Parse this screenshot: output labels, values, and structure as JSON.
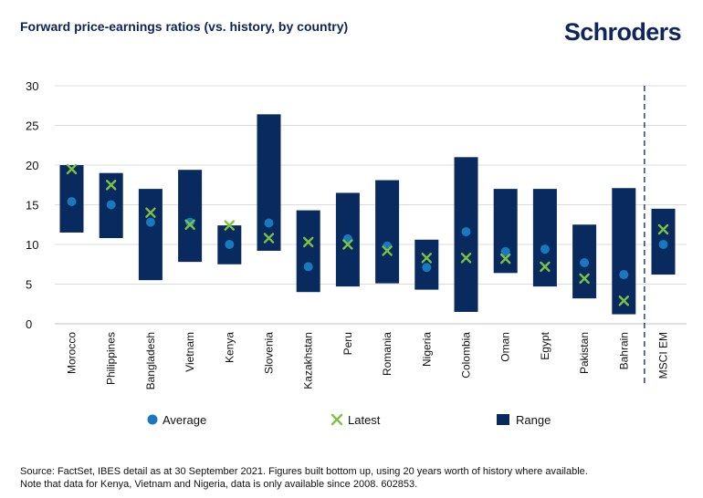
{
  "header": {
    "title": "Forward price-earnings ratios (vs. history, by country)",
    "logo_text": "Schroders"
  },
  "chart_data": {
    "type": "range-bar",
    "title": "Forward price-earnings ratios (vs. history, by country)",
    "ylim": [
      0,
      30
    ],
    "yticks": [
      0,
      5,
      10,
      15,
      20,
      25,
      30
    ],
    "grid": true,
    "legend_position": "bottom",
    "categories": [
      "Morocco",
      "Philippines",
      "Bangladesh",
      "Vietnam",
      "Kenya",
      "Slovenia",
      "Kazakhstan",
      "Peru",
      "Romania",
      "Nigeria",
      "Colombia",
      "Oman",
      "Egypt",
      "Pakistan",
      "Bahrain",
      "MSCI EM"
    ],
    "range_low": [
      11.5,
      10.8,
      5.5,
      7.8,
      7.5,
      9.2,
      4.0,
      4.7,
      5.1,
      4.3,
      1.5,
      6.4,
      4.7,
      3.2,
      1.2,
      6.2
    ],
    "range_high": [
      20.0,
      19.0,
      17.0,
      19.4,
      12.4,
      26.4,
      14.3,
      16.5,
      18.1,
      10.6,
      21.0,
      17.0,
      17.0,
      12.5,
      17.1,
      14.5
    ],
    "average": [
      15.4,
      15.0,
      12.8,
      12.8,
      10.0,
      12.7,
      7.2,
      10.7,
      9.8,
      7.1,
      11.6,
      9.1,
      9.4,
      7.7,
      6.2,
      10.0
    ],
    "latest": [
      19.5,
      17.5,
      14.0,
      12.5,
      12.4,
      10.8,
      10.3,
      10.0,
      9.2,
      8.3,
      8.3,
      8.2,
      7.2,
      5.7,
      2.9,
      11.9
    ],
    "separator_after": "Bahrain",
    "legend": [
      {
        "key": "average",
        "label": "Average"
      },
      {
        "key": "latest",
        "label": "Latest"
      },
      {
        "key": "range",
        "label": "Range"
      }
    ],
    "colors": {
      "range": "#082a5e",
      "average": "#1a78bd",
      "latest": "#7cc242",
      "grid": "#dcdcdc",
      "separator": "#0b2556"
    }
  },
  "footer": {
    "source_line1": "Source: FactSet, IBES detail as at 30 September 2021. Figures built bottom up, using 20 years worth of history where available.",
    "source_line2": "Note that data for Kenya, Vietnam and Nigeria, data is only available since 2008. 602853."
  }
}
